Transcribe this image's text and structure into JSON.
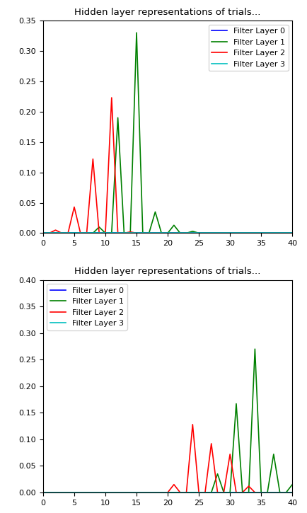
{
  "chart_data": [
    {
      "type": "line",
      "title": "Hidden layer representations of trials...",
      "x": [
        0,
        1,
        2,
        3,
        4,
        5,
        6,
        7,
        8,
        9,
        10,
        11,
        12,
        13,
        14,
        15,
        16,
        17,
        18,
        19,
        20,
        21,
        22,
        23,
        24,
        25,
        26,
        27,
        28,
        29,
        30,
        31,
        32,
        33,
        34,
        35,
        36,
        37,
        38,
        39,
        40
      ],
      "series": [
        {
          "name": "Filter Layer 0",
          "color": "#0000ff",
          "values": [
            0,
            0,
            0,
            0,
            0,
            0,
            0,
            0,
            0,
            0,
            0,
            0,
            0,
            0,
            0,
            0,
            0,
            0,
            0,
            0,
            0,
            0,
            0,
            0,
            0,
            0,
            0,
            0,
            0,
            0,
            0,
            0,
            0,
            0,
            0,
            0,
            0,
            0,
            0,
            0,
            0
          ]
        },
        {
          "name": "Filter Layer 1",
          "color": "#008000",
          "values": [
            0,
            0,
            0,
            0,
            0,
            0,
            0,
            0,
            0,
            0.01,
            0,
            0,
            0.19,
            0,
            0,
            0.33,
            0,
            0,
            0.035,
            0,
            0,
            0.013,
            0,
            0,
            0.003,
            0,
            0,
            0,
            0,
            0,
            0,
            0,
            0,
            0,
            0,
            0,
            0,
            0,
            0,
            0,
            0
          ]
        },
        {
          "name": "Filter Layer 2",
          "color": "#ff0000",
          "values": [
            0,
            0,
            0.005,
            0,
            0,
            0.043,
            0,
            0,
            0.122,
            0,
            0,
            0.223,
            0,
            0,
            0.002,
            0,
            0,
            0,
            0,
            0,
            0,
            0,
            0,
            0,
            0,
            0,
            0,
            0,
            0,
            0,
            0,
            0,
            0,
            0,
            0,
            0,
            0,
            0,
            0,
            0,
            0
          ]
        },
        {
          "name": "Filter Layer 3",
          "color": "#00bfbf",
          "values": [
            0,
            0,
            0,
            0,
            0,
            0,
            0,
            0,
            0,
            0,
            0,
            0,
            0,
            0,
            0,
            0,
            0,
            0,
            0,
            0,
            0,
            0,
            0,
            0,
            0,
            0,
            0,
            0,
            0,
            0,
            0,
            0,
            0,
            0,
            0,
            0,
            0,
            0,
            0,
            0,
            0
          ]
        }
      ],
      "xlim": [
        0,
        40
      ],
      "xticks": [
        0,
        5,
        10,
        15,
        20,
        25,
        30,
        35,
        40
      ],
      "ylim": [
        0,
        0.35
      ],
      "yticks": [
        {
          "value": 0,
          "label": "0.00"
        },
        {
          "value": 0.05,
          "label": "0.05"
        },
        {
          "value": 0.1,
          "label": "0.10"
        },
        {
          "value": 0.15,
          "label": "0.15"
        },
        {
          "value": 0.2,
          "label": "0.20"
        },
        {
          "value": 0.25,
          "label": "0.25"
        },
        {
          "value": 0.3,
          "label": "0.30"
        },
        {
          "value": 0.35,
          "label": "0.35"
        }
      ],
      "legend": "upper right"
    },
    {
      "type": "line",
      "title": "Hidden layer representations of trials...",
      "x": [
        0,
        1,
        2,
        3,
        4,
        5,
        6,
        7,
        8,
        9,
        10,
        11,
        12,
        13,
        14,
        15,
        16,
        17,
        18,
        19,
        20,
        21,
        22,
        23,
        24,
        25,
        26,
        27,
        28,
        29,
        30,
        31,
        32,
        33,
        34,
        35,
        36,
        37,
        38,
        39,
        40
      ],
      "series": [
        {
          "name": "Filter Layer 0",
          "color": "#0000ff",
          "values": [
            0,
            0,
            0,
            0,
            0,
            0,
            0,
            0,
            0,
            0,
            0,
            0,
            0,
            0,
            0,
            0,
            0,
            0,
            0,
            0,
            0,
            0,
            0,
            0,
            0,
            0,
            0,
            0,
            0,
            0,
            0,
            0,
            0,
            0,
            0,
            0,
            0,
            0,
            0,
            0,
            0
          ]
        },
        {
          "name": "Filter Layer 1",
          "color": "#008000",
          "values": [
            0,
            0,
            0,
            0,
            0,
            0,
            0,
            0,
            0,
            0,
            0,
            0,
            0,
            0,
            0,
            0,
            0,
            0,
            0,
            0,
            0,
            0,
            0,
            0,
            0,
            0,
            0,
            0,
            0.035,
            0,
            0,
            0.167,
            0,
            0,
            0.27,
            0,
            0,
            0.072,
            0,
            0,
            0.015
          ]
        },
        {
          "name": "Filter Layer 2",
          "color": "#ff0000",
          "values": [
            0,
            0,
            0,
            0,
            0,
            0,
            0,
            0,
            0,
            0,
            0,
            0,
            0,
            0,
            0,
            0,
            0,
            0,
            0,
            0,
            0,
            0.015,
            0,
            0,
            0.128,
            0,
            0,
            0.092,
            0,
            0,
            0.072,
            0,
            0,
            0.012,
            0,
            0,
            0,
            0,
            0,
            0,
            0
          ]
        },
        {
          "name": "Filter Layer 3",
          "color": "#00bfbf",
          "values": [
            0,
            0,
            0,
            0,
            0,
            0,
            0,
            0,
            0,
            0,
            0,
            0,
            0,
            0,
            0,
            0,
            0,
            0,
            0,
            0,
            0,
            0,
            0,
            0,
            0,
            0,
            0,
            0,
            0,
            0,
            0,
            0,
            0,
            0,
            0,
            0,
            0,
            0,
            0,
            0,
            0
          ]
        }
      ],
      "xlim": [
        0,
        40
      ],
      "xticks": [
        0,
        5,
        10,
        15,
        20,
        25,
        30,
        35,
        40
      ],
      "ylim": [
        0,
        0.4
      ],
      "yticks": [
        {
          "value": 0,
          "label": "0.00"
        },
        {
          "value": 0.05,
          "label": "0.05"
        },
        {
          "value": 0.1,
          "label": "0.10"
        },
        {
          "value": 0.15,
          "label": "0.15"
        },
        {
          "value": 0.2,
          "label": "0.20"
        },
        {
          "value": 0.25,
          "label": "0.25"
        },
        {
          "value": 0.3,
          "label": "0.30"
        },
        {
          "value": 0.35,
          "label": "0.35"
        },
        {
          "value": 0.4,
          "label": "0.40"
        }
      ],
      "legend": "upper left"
    }
  ]
}
